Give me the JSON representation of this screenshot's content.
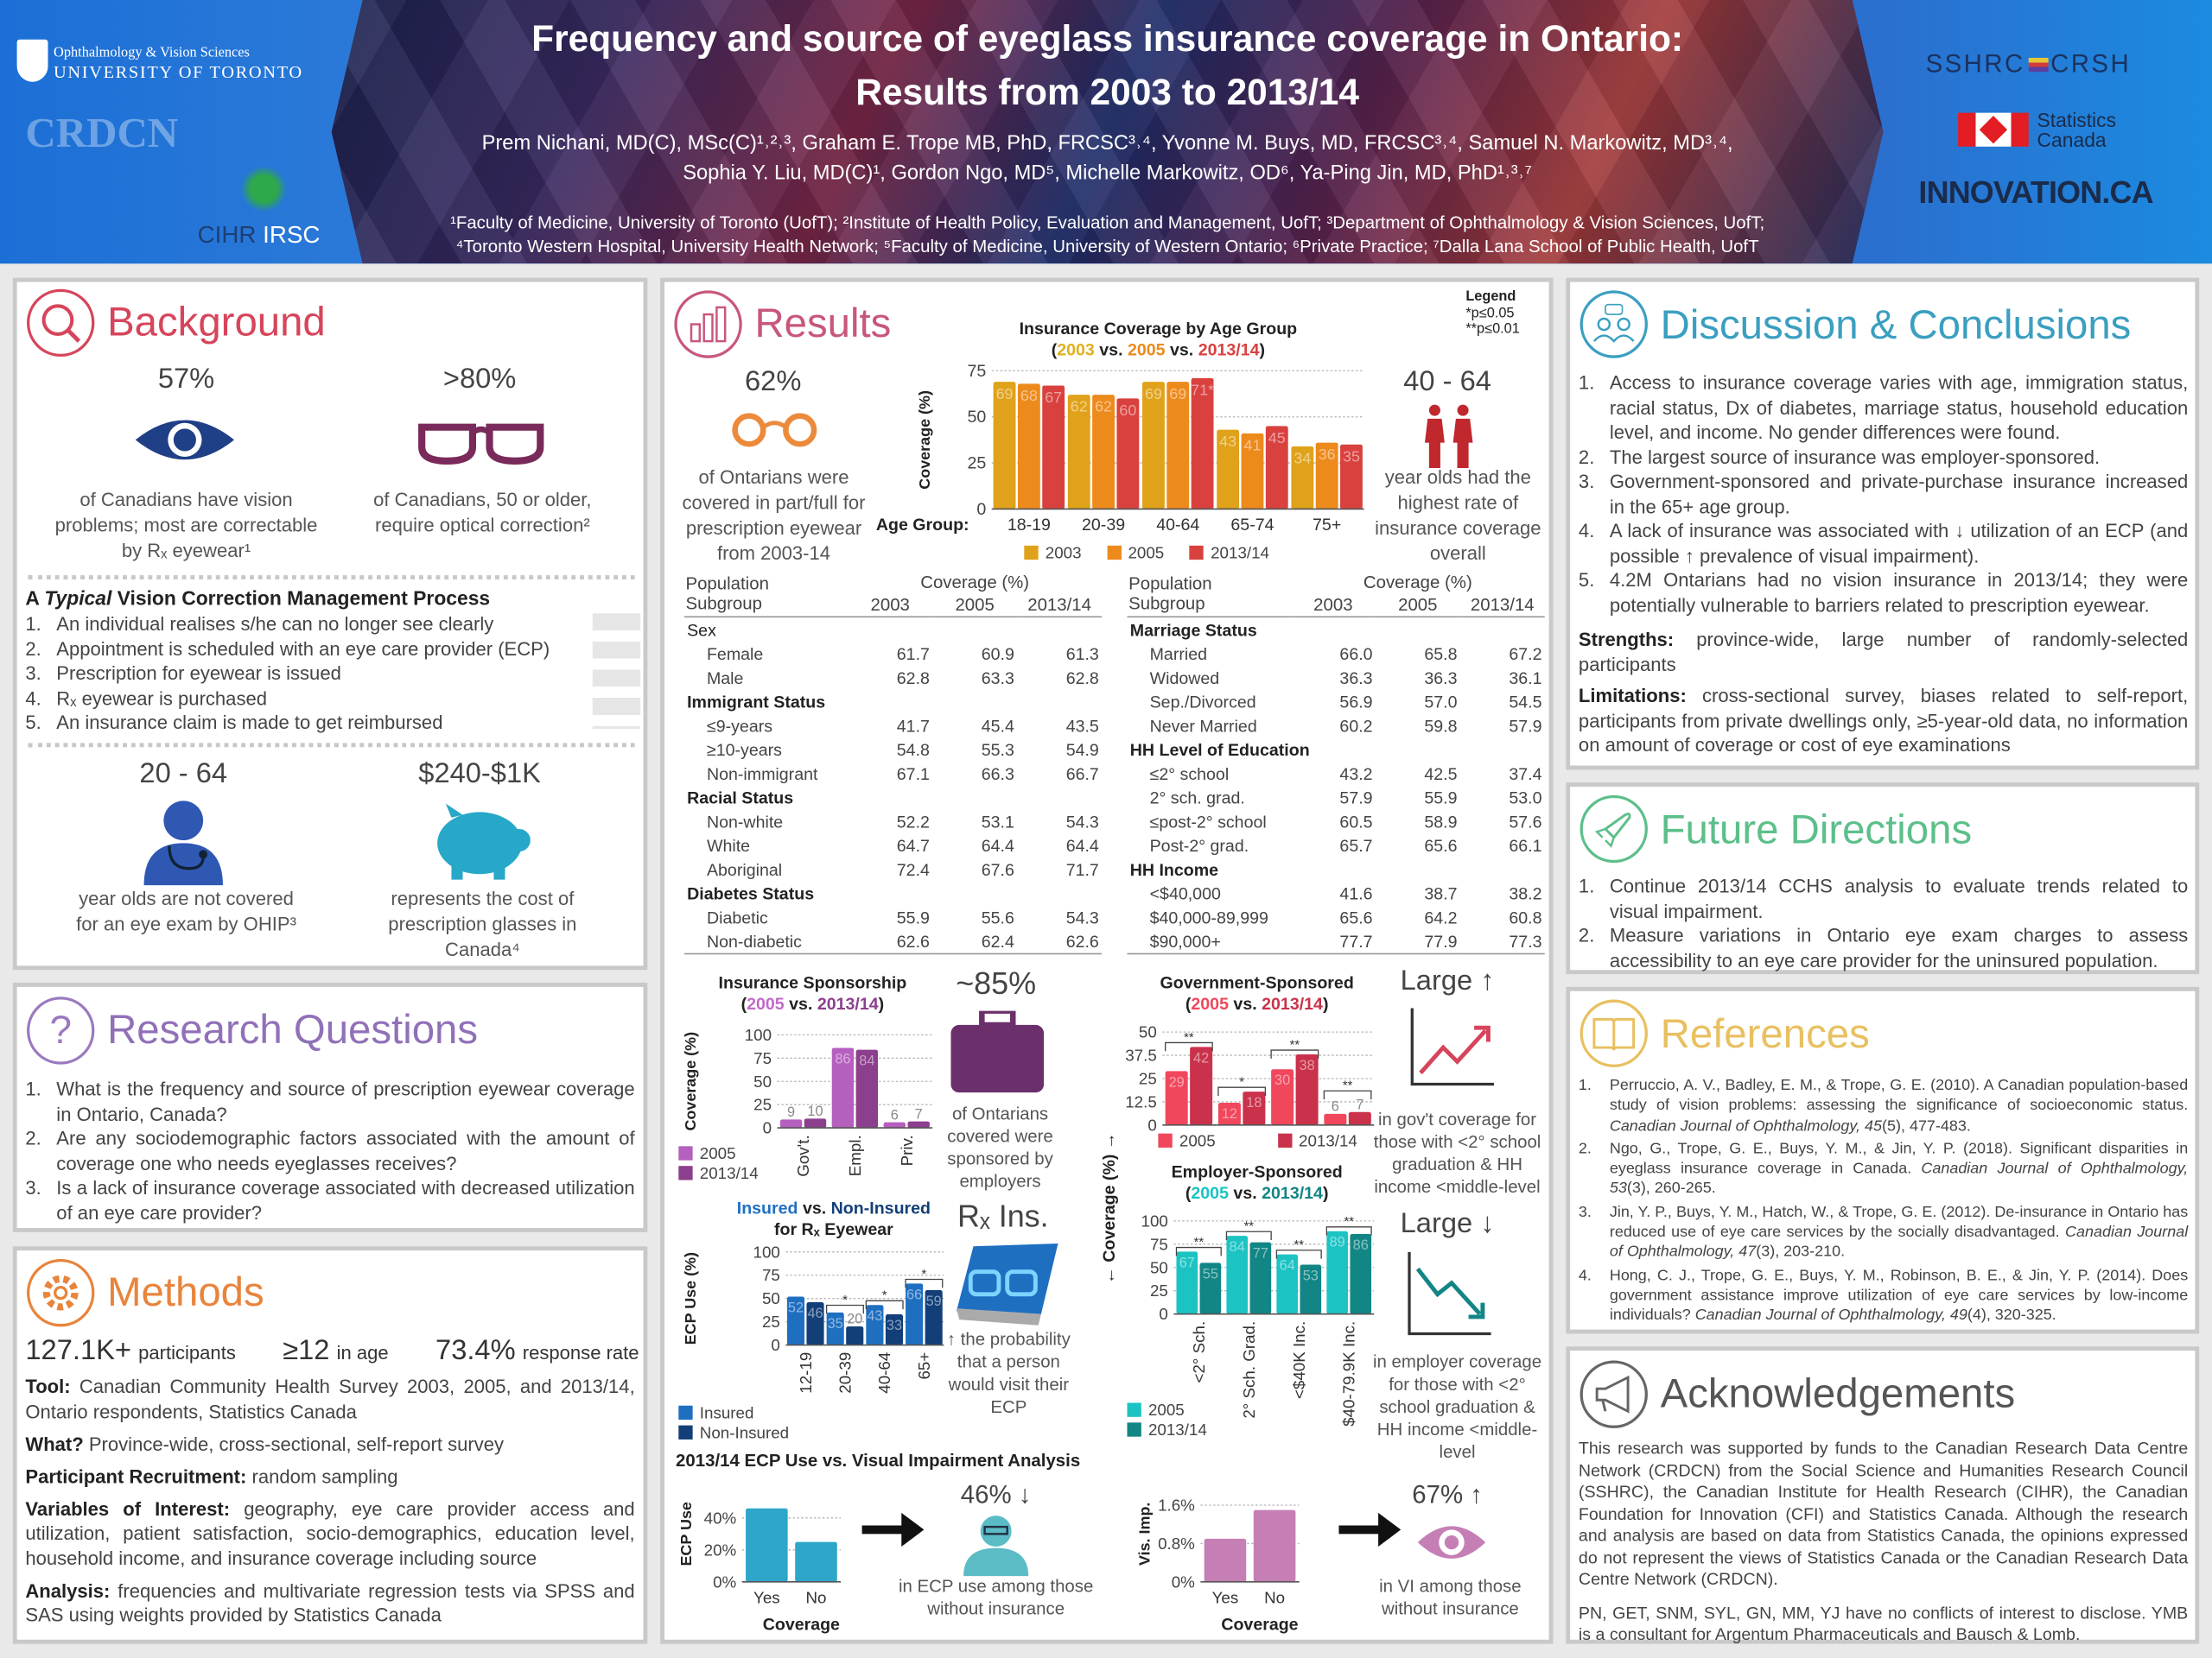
{
  "header": {
    "title_line1": "Frequency and source of eyeglass insurance coverage in Ontario:",
    "title_line2": "Results from 2003 to 2013/14",
    "authors_line1": "Prem Nichani, MD(C), MSc(C)¹˒²˒³, Graham E. Trope MB, PhD, FRCSC³˒⁴, Yvonne M. Buys, MD, FRCSC³˒⁴, Samuel N. Markowitz, MD³˒⁴,",
    "authors_line2": "Sophia Y. Liu, MD(C)¹, Gordon Ngo, MD⁵, Michelle Markowitz, OD⁶, Ya-Ping Jin, MD, PhD¹˒³˒⁷",
    "affil_line1": "¹Faculty of Medicine, University of Toronto (UofT); ²Institute of Health Policy, Evaluation and Management, UofT; ³Department of Ophthalmology & Vision Sciences, UofT;",
    "affil_line2": "⁴Toronto Western Hospital, University Health Network; ⁵Faculty of Medicine, University of Western Ontario; ⁶Private Practice; ⁷Dalla Lana School of Public Health, UofT",
    "logos": {
      "uoft_dept": "Ophthalmology & Vision Sciences",
      "uoft": "UNIVERSITY OF TORONTO",
      "crdcn": "CRDCN",
      "cihr": "CIHR",
      "irsc": "IRSC",
      "sshrc": "SSHRC",
      "crsh": "CRSH",
      "statcan1": "Statistics",
      "statcan2": "Canada",
      "innovation": "INNOVATION.CA"
    }
  },
  "background": {
    "title": "Background",
    "stat1": {
      "value": "57%",
      "text": "of Canadians have vision problems; most are correctable by Rₓ eyewear¹"
    },
    "stat2": {
      "value": ">80%",
      "text": "of Canadians, 50 or older, require optical correction²"
    },
    "process_title_pre": "A ",
    "process_title_em": "Typical",
    "process_title_post": " Vision Correction Management Process",
    "process": [
      "An individual realises s/he can no longer see clearly",
      "Appointment is scheduled with an eye care provider (ECP)",
      "Prescription for eyewear is issued",
      "Rₓ eyewear is purchased",
      "An insurance claim is made to get reimbursed"
    ],
    "stat3": {
      "value": "20 - 64",
      "text": "year olds are not covered for an eye exam by OHIP³"
    },
    "stat4": {
      "value": "$240-$1K",
      "text": "represents the cost of prescription glasses in Canada⁴"
    }
  },
  "research": {
    "title": "Research Questions",
    "items": [
      "What is the frequency and source of prescription eyewear coverage in Ontario, Canada?",
      "Are any sociodemographic factors associated with the amount of coverage one who needs eyeglasses receives?",
      "Is a lack of insurance coverage associated with decreased utilization of an eye care provider?"
    ]
  },
  "methods": {
    "title": "Methods",
    "stats": [
      {
        "value": "127.1K+",
        "label": "participants"
      },
      {
        "value": "≥12",
        "label": "in age"
      },
      {
        "value": "73.4%",
        "label": "response rate"
      }
    ],
    "paras": [
      {
        "label": "Tool:",
        "text": " Canadian Community Health Survey 2003, 2005, and 2013/14, Ontario respondents, Statistics Canada"
      },
      {
        "label": "What?",
        "text": " Province-wide, cross-sectional, self-report survey"
      },
      {
        "label": "Participant Recruitment:",
        "text": " random sampling"
      },
      {
        "label": "Variables of Interest:",
        "text": " geography, eye care provider access and utilization, patient satisfaction, socio-demographics, education level, household income, and insurance coverage including source"
      },
      {
        "label": "Analysis:",
        "text": " frequencies and multivariate regression tests via SPSS and SAS using weights provided by Statistics Canada"
      }
    ]
  },
  "results": {
    "title": "Results",
    "stat1": {
      "value": "62%",
      "text": "of Ontarians were covered in part/full for prescription eyewear from 2003-14"
    },
    "stat2": {
      "value": "40 - 64",
      "text": "year olds had the highest rate of insurance coverage overall"
    },
    "legend": {
      "title": "Legend",
      "p05": "*p≤0.05",
      "p01": "**p≤0.01"
    },
    "stat3": {
      "value": "~85%",
      "text": "of Ontarians covered were sponsored by employers"
    },
    "stat4": {
      "value": "Rₓ Ins.",
      "text": "↑ the probability that a person would visit their ECP"
    },
    "stat5": {
      "value": "Large ↑",
      "text": "in gov't coverage for those with <2° school graduation & HH income <middle-level"
    },
    "stat6": {
      "value": "Large ↓",
      "text": "in employer coverage for those with <2° school graduation & HH income <middle-level"
    },
    "analysis_title": "2013/14 ECP Use vs. Visual Impairment Analysis",
    "stat7": {
      "value": "46% ↓",
      "text": "in ECP use among those without insurance"
    },
    "stat8": {
      "value": "67% ↑",
      "text": "in VI among those without insurance"
    },
    "tables": [
      {
        "header": "Population Subgroup",
        "coverage": "Coverage (%)",
        "years": [
          "2003",
          "2005",
          "2013/14"
        ],
        "groups": [
          {
            "name": "Sex",
            "rows": [
              [
                "Female",
                "61.7",
                "60.9",
                "61.3"
              ],
              [
                "Male",
                "62.8",
                "63.3",
                "62.8"
              ]
            ]
          },
          {
            "name": "Immigrant Status",
            "rows": [
              [
                "≤9-years",
                "41.7",
                "45.4",
                "43.5"
              ],
              [
                "≥10-years",
                "54.8",
                "55.3",
                "54.9"
              ],
              [
                "Non-immigrant",
                "67.1",
                "66.3",
                "66.7"
              ]
            ]
          },
          {
            "name": "Racial Status",
            "rows": [
              [
                "Non-white",
                "52.2",
                "53.1",
                "54.3"
              ],
              [
                "White",
                "64.7",
                "64.4",
                "64.4"
              ],
              [
                "Aboriginal",
                "72.4",
                "67.6",
                "71.7"
              ]
            ]
          },
          {
            "name": "Diabetes Status",
            "rows": [
              [
                "Diabetic",
                "55.9",
                "55.6",
                "54.3"
              ],
              [
                "Non-diabetic",
                "62.6",
                "62.4",
                "62.6"
              ]
            ]
          }
        ]
      },
      {
        "header": "Population Subgroup",
        "coverage": "Coverage (%)",
        "years": [
          "2003",
          "2005",
          "2013/14"
        ],
        "groups": [
          {
            "name": "Marriage Status",
            "rows": [
              [
                "Married",
                "66.0",
                "65.8",
                "67.2"
              ],
              [
                "Widowed",
                "36.3",
                "36.3",
                "36.1"
              ],
              [
                "Sep./Divorced",
                "56.9",
                "57.0",
                "54.5"
              ],
              [
                "Never Married",
                "60.2",
                "59.8",
                "57.9"
              ]
            ]
          },
          {
            "name": "HH Level of Education",
            "rows": [
              [
                "≤2° school",
                "43.2",
                "42.5",
                "37.4"
              ],
              [
                "2° sch. grad.",
                "57.9",
                "55.9",
                "53.0"
              ],
              [
                "≤post-2° school",
                "60.5",
                "58.9",
                "57.6"
              ],
              [
                "Post-2° grad.",
                "65.7",
                "65.6",
                "66.1"
              ]
            ]
          },
          {
            "name": "HH Income",
            "rows": [
              [
                "<$40,000",
                "41.6",
                "38.7",
                "38.2"
              ],
              [
                "$40,000-89,999",
                "65.6",
                "64.2",
                "60.8"
              ],
              [
                "$90,000+",
                "77.7",
                "77.9",
                "77.3"
              ]
            ]
          }
        ]
      }
    ]
  },
  "chart_data": [
    {
      "type": "bar",
      "title": "Insurance Coverage by Age Group",
      "subtitle_parts": [
        "(",
        "2003",
        " vs. ",
        "2005",
        " vs. ",
        "2013/14",
        ")"
      ],
      "xlabel": "Age Group:",
      "ylabel": "Coverage (%)",
      "ylim": [
        0,
        75
      ],
      "yticks": [
        0,
        25,
        50,
        75
      ],
      "ytick_labels": [
        "0",
        "25",
        "50",
        "75"
      ],
      "grid": true,
      "legend": "bottom",
      "categories": [
        "18-19",
        "20-39",
        "40-64",
        "65-74",
        "75+"
      ],
      "series": [
        {
          "name": "2003",
          "values": [
            69,
            62,
            69,
            43,
            34
          ],
          "color": "#e0a21a"
        },
        {
          "name": "2005",
          "values": [
            68,
            62,
            69,
            41,
            36
          ],
          "color": "#ec8a1c"
        },
        {
          "name": "2013/14",
          "values": [
            67,
            60,
            71,
            45,
            35
          ],
          "color": "#d9413f"
        }
      ],
      "value_labels": [
        [
          "69",
          "62",
          "69",
          "43",
          "34"
        ],
        [
          "68",
          "62",
          "69",
          "41",
          "36"
        ],
        [
          "67",
          "60",
          "71*",
          "45",
          "35"
        ]
      ]
    },
    {
      "type": "bar",
      "title": "Insurance Sponsorship",
      "subtitle_parts": [
        "(",
        "2005",
        " vs. ",
        "2013/14",
        ")"
      ],
      "ylabel": "Coverage (%)",
      "ylim": [
        0,
        100
      ],
      "yticks": [
        0,
        25,
        50,
        75,
        100
      ],
      "ytick_labels": [
        "0",
        "25",
        "50",
        "75",
        "100"
      ],
      "grid": true,
      "legend": "bottom-left",
      "categories": [
        "Gov't.",
        "Empl.",
        "Priv."
      ],
      "series": [
        {
          "name": "2005",
          "values": [
            9,
            86,
            6
          ],
          "color": "#b55fbf"
        },
        {
          "name": "2013/14",
          "values": [
            10,
            84,
            7
          ],
          "color": "#8b3f8c"
        }
      ]
    },
    {
      "type": "bar",
      "title_parts": [
        "Insured",
        " vs. ",
        "Non-Insured"
      ],
      "title_line2": "for Rₓ Eyewear",
      "ylabel": "ECP Use (%)",
      "ylim": [
        0,
        100
      ],
      "yticks": [
        0,
        25,
        50,
        75,
        100
      ],
      "ytick_labels": [
        "0",
        "25",
        "50",
        "75",
        "100"
      ],
      "grid": true,
      "legend": "bottom-left",
      "categories": [
        "12-19",
        "20-39",
        "40-64",
        "65+"
      ],
      "series": [
        {
          "name": "Insured",
          "values": [
            52,
            35,
            43,
            66
          ],
          "color": "#1f6fc1"
        },
        {
          "name": "Non-Insured",
          "values": [
            46,
            20,
            33,
            59
          ],
          "color": "#123f78"
        }
      ],
      "significance": [
        "",
        "*",
        "*",
        "*"
      ]
    },
    {
      "type": "bar",
      "title": "Government-Sponsored",
      "subtitle_parts": [
        "(",
        "2005",
        " vs. ",
        "2013/14",
        ")"
      ],
      "ylabel": "← Coverage (%) →",
      "ylim": [
        0,
        50
      ],
      "yticks": [
        0,
        12.5,
        25,
        37.5,
        50
      ],
      "ytick_labels": [
        "0",
        "12.5",
        "25",
        "37.5",
        "50"
      ],
      "grid": true,
      "legend": "bottom",
      "categories": [
        "<2° Sch.",
        "2° Sch. Grad.",
        "<$40K Inc.",
        "$40-79.9K Inc."
      ],
      "series": [
        {
          "name": "2005",
          "values": [
            29,
            12,
            30,
            6
          ],
          "color": "#f0475c"
        },
        {
          "name": "2013/14",
          "values": [
            42,
            18,
            38,
            7
          ],
          "color": "#c9324a"
        }
      ],
      "significance": [
        "**",
        "*",
        "**",
        "**"
      ]
    },
    {
      "type": "bar",
      "title": "Employer-Sponsored",
      "subtitle_parts": [
        "(",
        "2005",
        " vs. ",
        "2013/14",
        ")"
      ],
      "ylabel": "← Coverage (%) →",
      "ylim": [
        0,
        100
      ],
      "yticks": [
        0,
        25,
        50,
        75,
        100
      ],
      "ytick_labels": [
        "0",
        "25",
        "50",
        "75",
        "100"
      ],
      "grid": true,
      "legend": "bottom-left",
      "categories": [
        "<2° Sch.",
        "2° Sch. Grad.",
        "<$40K Inc.",
        "$40-79.9K Inc."
      ],
      "series": [
        {
          "name": "2005",
          "values": [
            67,
            84,
            64,
            89
          ],
          "color": "#1cc3c3"
        },
        {
          "name": "2013/14",
          "values": [
            55,
            77,
            53,
            86
          ],
          "color": "#128585"
        }
      ],
      "significance": [
        "**",
        "**",
        "**",
        "**"
      ]
    },
    {
      "type": "bar",
      "ylabel": "ECP Use",
      "xlabel": "Coverage",
      "ylim": [
        0,
        60
      ],
      "yticks": [
        0,
        20,
        40
      ],
      "ytick_labels": [
        "0%",
        "20%",
        "40%"
      ],
      "grid": true,
      "categories": [
        "Yes",
        "No"
      ],
      "series": [
        {
          "values": [
            46,
            25
          ],
          "color": "#2da6c9"
        }
      ]
    },
    {
      "type": "bar",
      "ylabel": "Vis. Imp.",
      "xlabel": "Coverage",
      "ylim": [
        0,
        2.0
      ],
      "yticks": [
        0,
        0.8,
        1.6
      ],
      "ytick_labels": [
        "0%",
        "0.8%",
        "1.6%"
      ],
      "grid": true,
      "categories": [
        "Yes",
        "No"
      ],
      "series": [
        {
          "values": [
            0.9,
            1.5
          ],
          "color": "#c57fb5"
        }
      ]
    }
  ],
  "discussion": {
    "title": "Discussion & Conclusions",
    "items": [
      "Access to insurance coverage varies with age, immigration status, racial status, Dx of diabetes, marriage status, household education level, and income. No gender differences were found.",
      "The largest source of insurance was employer-sponsored.",
      "Government-sponsored and private-purchase insurance increased in the 65+ age group.",
      "A lack of insurance was associated with ↓ utilization of an ECP (and possible ↑ prevalence of visual impairment).",
      "4.2M Ontarians had no vision insurance in 2013/14; they were potentially vulnerable to barriers related to prescription eyewear."
    ],
    "strengths_label": "Strengths:",
    "strengths": " province-wide, large number of randomly-selected participants",
    "limitations_label": "Limitations:",
    "limitations": " cross-sectional survey, biases related to self-report, participants from private dwellings only, ≥5-year-old data, no information on amount of coverage or cost of eye examinations"
  },
  "future": {
    "title": "Future Directions",
    "items": [
      "Continue 2013/14 CCHS analysis to evaluate trends related to visual impairment.",
      "Measure variations in Ontario eye exam charges to assess accessibility to an eye care provider for the uninsured population."
    ]
  },
  "references": {
    "title": "References",
    "items": [
      {
        "pre": "Perruccio, A. V., Badley, E. M., & Trope, G. E. (2010). A Canadian population-based study of vision problems: assessing the significance of socioeconomic status. ",
        "journal": "Canadian Journal of Ophthalmology, 45",
        "post": "(5), 477-483."
      },
      {
        "pre": "Ngo, G., Trope, G. E., Buys, Y. M., & Jin, Y. P. (2018). Significant disparities in eyeglass insurance coverage in Canada. ",
        "journal": "Canadian Journal of Ophthalmology, 53",
        "post": "(3), 260-265."
      },
      {
        "pre": "Jin, Y. P., Buys, Y. M., Hatch, W., & Trope, G. E. (2012). De-insurance in Ontario has reduced use of eye care services by the socially disadvantaged. ",
        "journal": "Canadian Journal of Ophthalmology, 47",
        "post": "(3), 203-210."
      },
      {
        "pre": "Hong, C. J., Trope, G. E., Buys, Y. M., Robinson, B. E., & Jin, Y. P. (2014). Does government assistance improve utilization of eye care services by low-income individuals? ",
        "journal": "Canadian Journal of Ophthalmology, 49",
        "post": "(4), 320-325."
      }
    ]
  },
  "acknowledgements": {
    "title": "Acknowledgements",
    "text": "This research was supported by funds to the Canadian Research Data Centre Network (CRDCN) from the Social Science and Humanities Research Council (SSHRC), the Canadian Institute for Health Research (CIHR), the Canadian Foundation for Innovation (CFI) and Statistics Canada. Although the research and analysis are based on data from Statistics Canada, the opinions expressed do not represent the views of Statistics Canada or the Canadian Research Data Centre Network (CRDCN).",
    "disclosure": "PN, GET, SNM, SYL, GN, MM, YJ have no conflicts of interest to disclose. YMB is a consultant for Argentum Pharmaceuticals and Bausch & Lomb."
  }
}
